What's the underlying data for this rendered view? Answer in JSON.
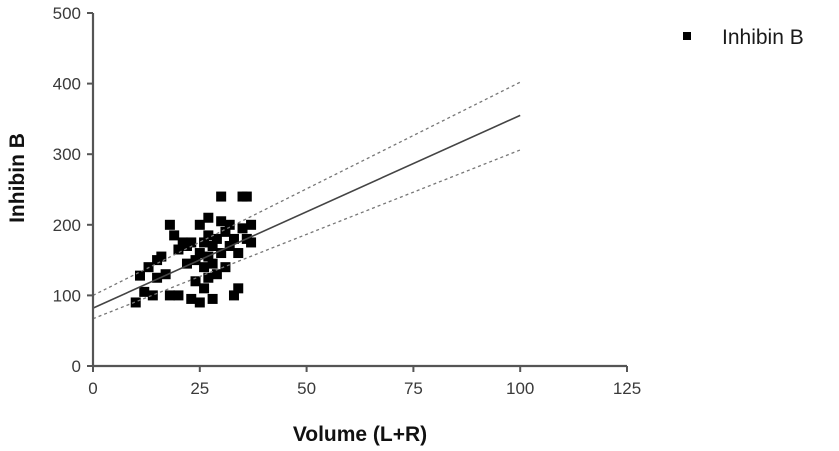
{
  "chart_data": {
    "type": "scatter",
    "title": "",
    "xlabel": "Volume (L+R)",
    "ylabel": "Inhibin B",
    "xlim": [
      0,
      125
    ],
    "ylim": [
      0,
      500
    ],
    "xticks": [
      0,
      25,
      50,
      75,
      100,
      125
    ],
    "yticks": [
      0,
      100,
      200,
      300,
      400,
      500
    ],
    "grid": false,
    "legend_position": "top-right",
    "series": [
      {
        "name": "Inhibin B",
        "marker": "square",
        "color": "#000000",
        "points": [
          [
            10,
            90
          ],
          [
            11,
            128
          ],
          [
            12,
            105
          ],
          [
            13,
            140
          ],
          [
            14,
            100
          ],
          [
            15,
            150
          ],
          [
            15,
            125
          ],
          [
            16,
            155
          ],
          [
            17,
            130
          ],
          [
            18,
            200
          ],
          [
            18,
            100
          ],
          [
            19,
            185
          ],
          [
            20,
            165
          ],
          [
            20,
            100
          ],
          [
            21,
            175
          ],
          [
            22,
            170
          ],
          [
            22,
            145
          ],
          [
            23,
            95
          ],
          [
            23,
            175
          ],
          [
            24,
            150
          ],
          [
            24,
            120
          ],
          [
            25,
            200
          ],
          [
            25,
            160
          ],
          [
            25,
            90
          ],
          [
            26,
            175
          ],
          [
            26,
            140
          ],
          [
            26,
            110
          ],
          [
            27,
            210
          ],
          [
            27,
            185
          ],
          [
            27,
            155
          ],
          [
            27,
            125
          ],
          [
            28,
            170
          ],
          [
            28,
            145
          ],
          [
            28,
            95
          ],
          [
            29,
            180
          ],
          [
            29,
            130
          ],
          [
            30,
            240
          ],
          [
            30,
            205
          ],
          [
            30,
            160
          ],
          [
            31,
            190
          ],
          [
            31,
            140
          ],
          [
            32,
            200
          ],
          [
            32,
            170
          ],
          [
            33,
            100
          ],
          [
            33,
            180
          ],
          [
            34,
            110
          ],
          [
            34,
            160
          ],
          [
            35,
            240
          ],
          [
            35,
            195
          ],
          [
            36,
            180
          ],
          [
            36,
            240
          ],
          [
            37,
            200
          ],
          [
            37,
            175
          ]
        ]
      }
    ],
    "regression": {
      "fit": {
        "x": [
          0,
          100
        ],
        "y": [
          82,
          355
        ],
        "style": "solid"
      },
      "ci_upper": {
        "x": [
          0,
          100
        ],
        "y": [
          100,
          402
        ],
        "style": "dotted"
      },
      "ci_lower": {
        "x": [
          0,
          100
        ],
        "y": [
          67,
          306
        ],
        "style": "dotted"
      }
    }
  },
  "colors": {
    "axis": "#555555",
    "points": "#000000",
    "fit_line": "#444444",
    "ci_line": "#777777"
  }
}
